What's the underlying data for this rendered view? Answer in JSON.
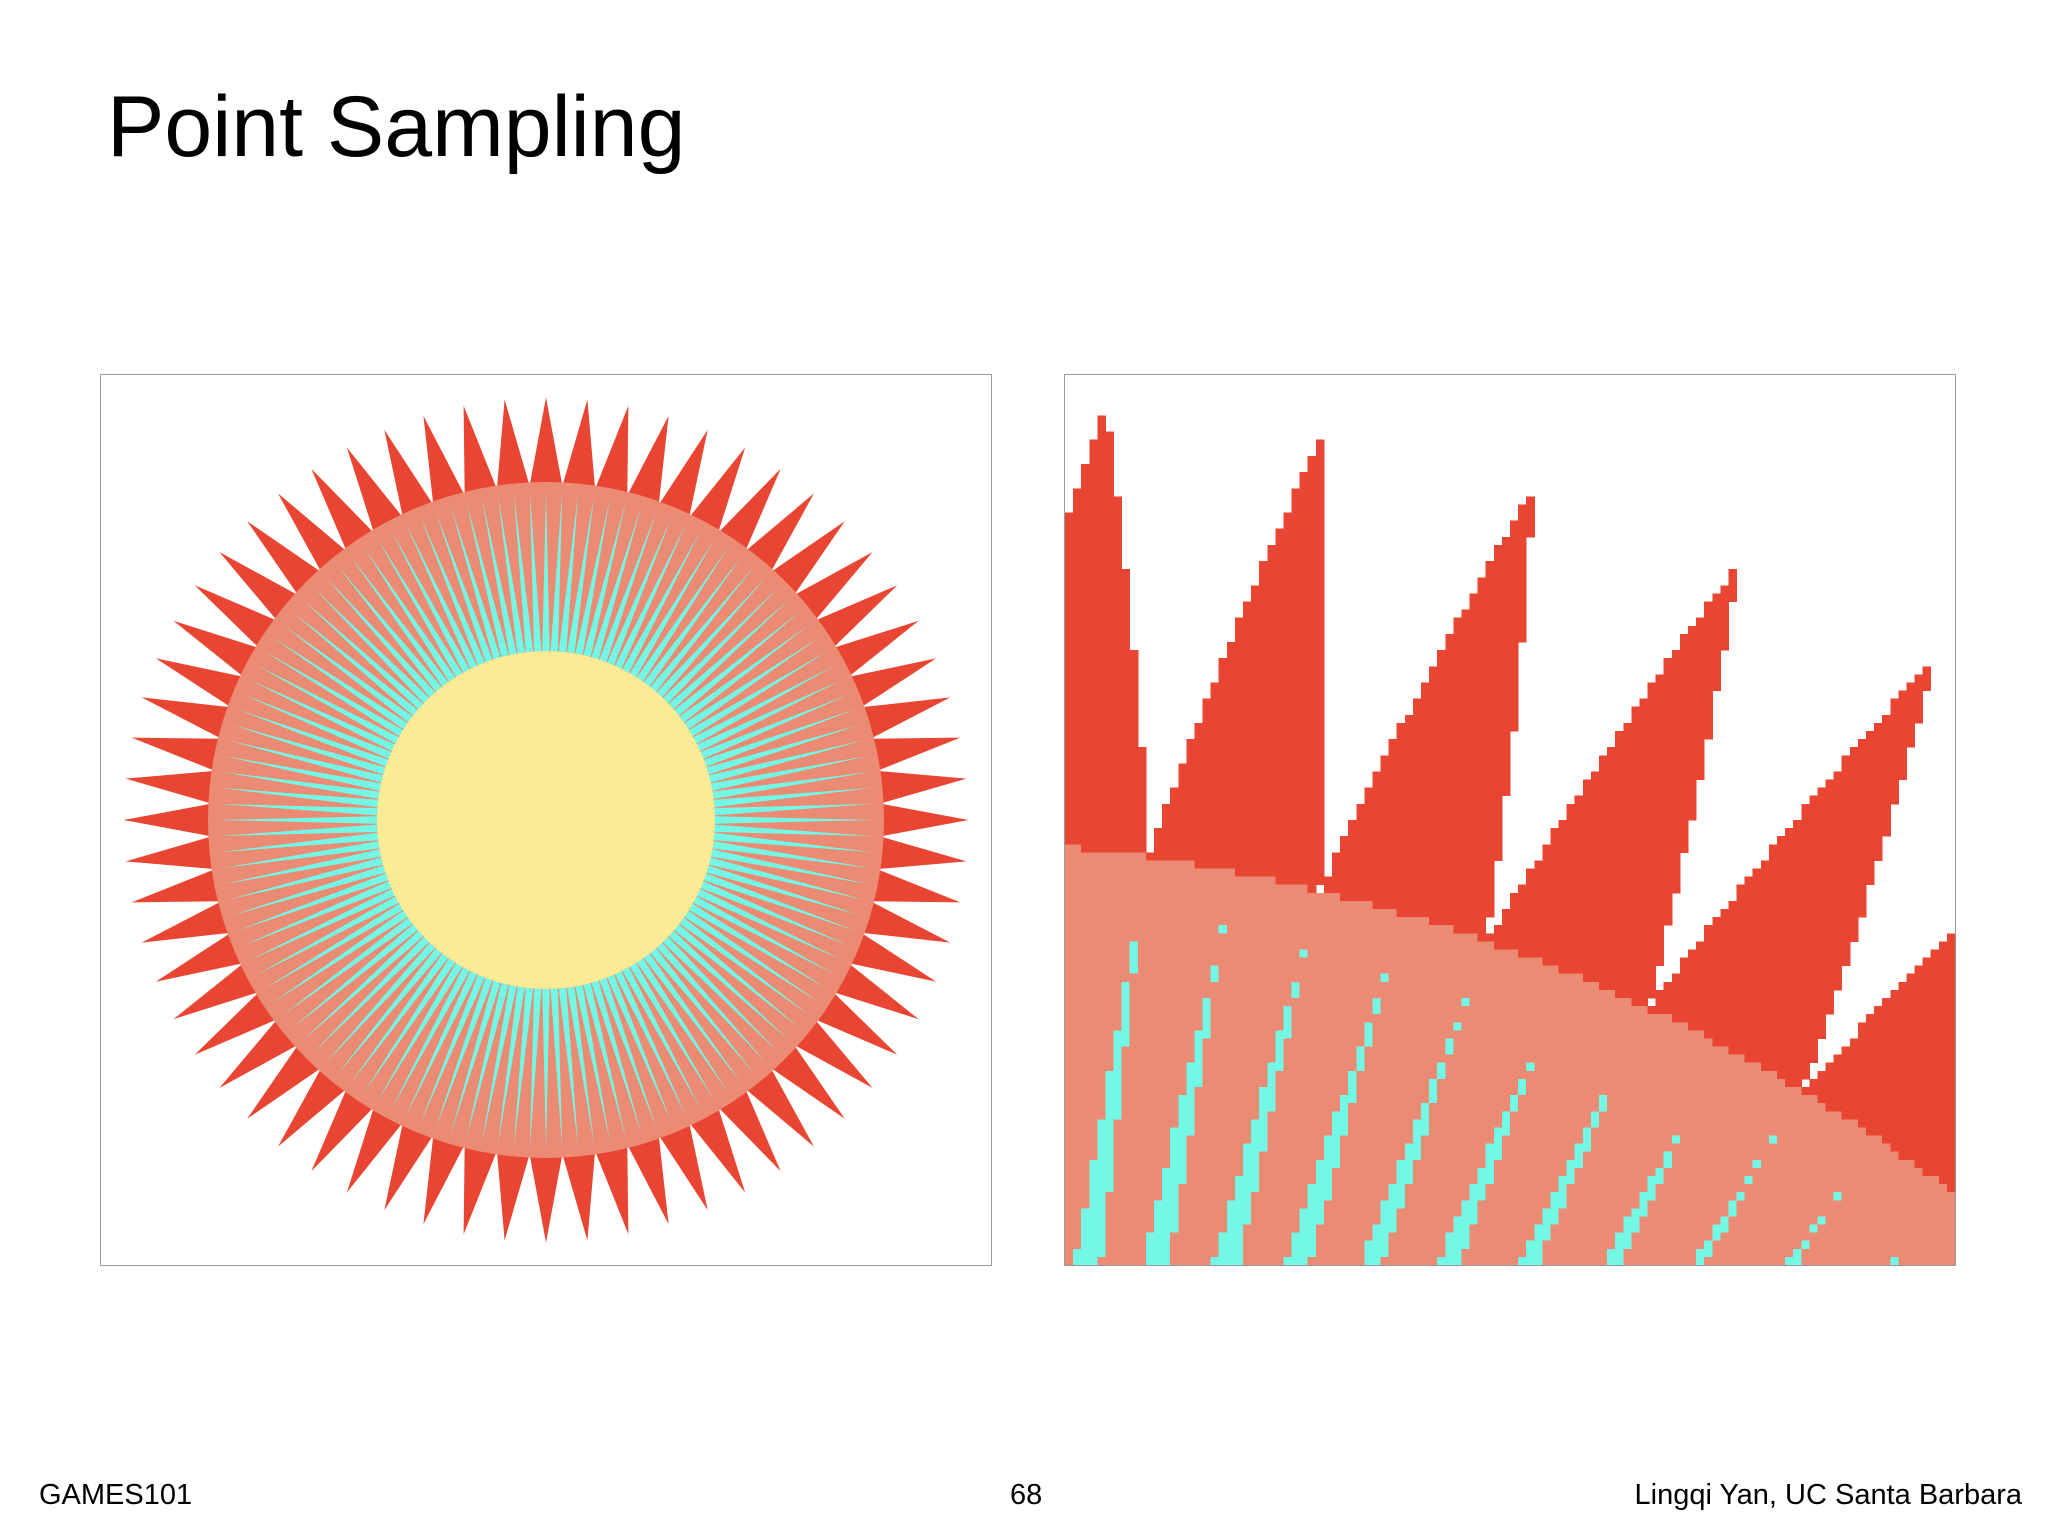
{
  "header": {
    "title": "Point Sampling"
  },
  "footer": {
    "course": "GAMES101",
    "page": "68",
    "author": "Lingqi Yan, UC Santa Barbara"
  }
}
